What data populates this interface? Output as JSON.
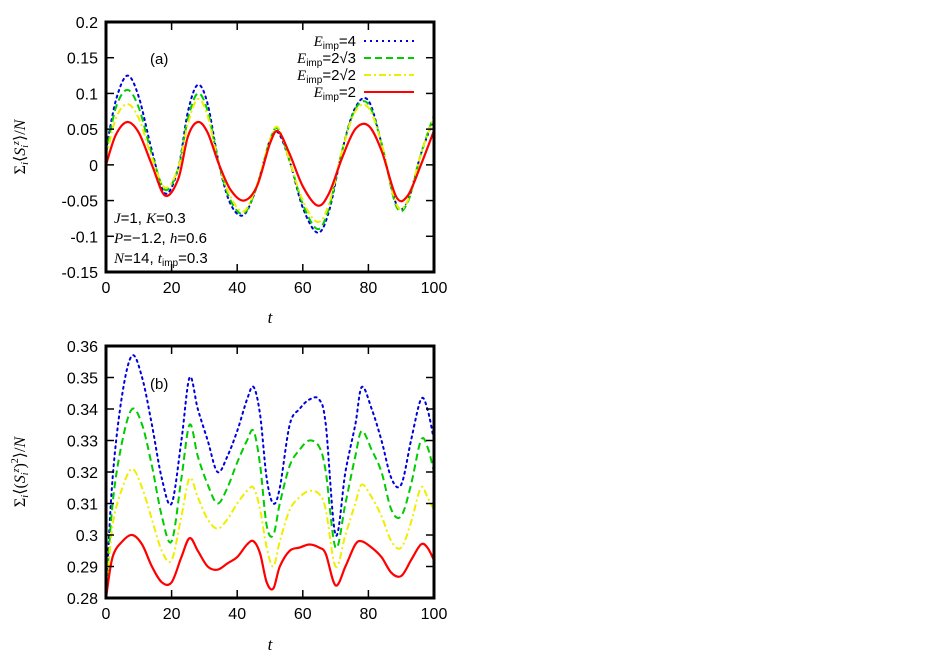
{
  "chart_data": [
    {
      "type": "line",
      "panel_label": "(a)",
      "xlabel": "t",
      "ylabel": "Σi⟨Siz⟩/N",
      "xlim": [
        0,
        100
      ],
      "ylim": [
        -0.15,
        0.2
      ],
      "xticks": [
        0,
        20,
        40,
        60,
        80,
        100
      ],
      "yticks": [
        -0.15,
        -0.1,
        -0.05,
        0,
        0.05,
        0.1,
        0.15,
        0.2
      ],
      "ytick_labels": [
        "-0.15",
        "-0.1",
        "-0.05",
        "0",
        "0.05",
        "0.1",
        "0.15",
        "0.2"
      ],
      "grid": false,
      "legend_position": "top-right",
      "annotation_lines": [
        "J=1, K=0.3",
        "P=−1.2, h=0.6",
        "N=14, timp=0.3"
      ],
      "series": [
        {
          "name": "Eimp=4",
          "color": "#0000dd",
          "dash": "dot",
          "x": [
            0,
            3,
            6.5,
            10,
            14,
            18,
            22,
            25,
            28,
            31,
            34.5,
            38,
            42,
            46,
            50,
            52.5,
            56,
            60,
            64.5,
            68,
            72,
            76,
            80,
            84,
            88.5,
            92,
            96,
            100
          ],
          "y": [
            0.02,
            0.09,
            0.125,
            0.095,
            0.02,
            -0.04,
            -0.005,
            0.075,
            0.112,
            0.085,
            0.0,
            -0.055,
            -0.07,
            -0.03,
            0.035,
            0.045,
            0.005,
            -0.06,
            -0.095,
            -0.065,
            0.02,
            0.08,
            0.09,
            0.03,
            -0.055,
            -0.05,
            0.015,
            0.065
          ]
        },
        {
          "name": "Eimp=2√3",
          "color": "#00cc00",
          "dash": "dash",
          "x": [
            0,
            3,
            6.5,
            10,
            14,
            18,
            22,
            25,
            28,
            31,
            34.5,
            38,
            42,
            46,
            50,
            52.5,
            56,
            60,
            64.5,
            68,
            72,
            76,
            80,
            84,
            88.5,
            92,
            96,
            100
          ],
          "y": [
            0.015,
            0.08,
            0.105,
            0.08,
            0.015,
            -0.035,
            -0.005,
            0.065,
            0.1,
            0.075,
            0.0,
            -0.05,
            -0.068,
            -0.03,
            0.035,
            0.05,
            0.005,
            -0.055,
            -0.09,
            -0.06,
            0.02,
            0.078,
            0.085,
            0.03,
            -0.058,
            -0.052,
            0.015,
            0.07
          ]
        },
        {
          "name": "Eimp=2√2",
          "color": "#eeee00",
          "dash": "dashdot",
          "x": [
            0,
            3,
            6.5,
            10,
            14,
            18,
            22,
            25,
            28,
            31,
            34.5,
            38,
            42,
            46,
            50,
            52.5,
            56,
            60,
            64.5,
            68,
            72,
            76,
            80,
            84,
            88.5,
            92,
            96,
            100
          ],
          "y": [
            0.01,
            0.065,
            0.085,
            0.065,
            0.01,
            -0.032,
            -0.005,
            0.058,
            0.092,
            0.068,
            0.0,
            -0.045,
            -0.065,
            -0.028,
            0.035,
            0.052,
            0.005,
            -0.05,
            -0.08,
            -0.055,
            0.02,
            0.075,
            0.08,
            0.03,
            -0.055,
            -0.05,
            0.015,
            0.068
          ]
        },
        {
          "name": "Eimp=2",
          "color": "#ff0000",
          "dash": "solid",
          "x": [
            0,
            3,
            6.5,
            10,
            14,
            18,
            22,
            25,
            28,
            31,
            34.5,
            38,
            42,
            46,
            50,
            52.5,
            56,
            60,
            64.5,
            68,
            72,
            76,
            80,
            84,
            88.5,
            92,
            96,
            100
          ],
          "y": [
            0.0,
            0.042,
            0.06,
            0.045,
            0.0,
            -0.043,
            -0.02,
            0.04,
            0.06,
            0.045,
            0.0,
            -0.035,
            -0.05,
            -0.03,
            0.03,
            0.047,
            0.015,
            -0.03,
            -0.057,
            -0.04,
            0.01,
            0.05,
            0.055,
            0.02,
            -0.045,
            -0.043,
            0.0,
            0.048
          ]
        }
      ]
    },
    {
      "type": "line",
      "panel_label": "(b)",
      "xlabel": "t",
      "ylabel": "Σi⟨(Siz)2⟩/N",
      "xlim": [
        0,
        100
      ],
      "ylim": [
        0.28,
        0.36
      ],
      "xticks": [
        0,
        20,
        40,
        60,
        80,
        100
      ],
      "yticks": [
        0.28,
        0.29,
        0.3,
        0.31,
        0.32,
        0.33,
        0.34,
        0.35,
        0.36
      ],
      "ytick_labels": [
        "0.28",
        "0.29",
        "0.3",
        "0.31",
        "0.32",
        "0.33",
        "0.34",
        "0.35",
        "0.36"
      ],
      "grid": false,
      "series": [
        {
          "name": "Eimp=4",
          "color": "#0000dd",
          "dash": "dot",
          "x": [
            0,
            2,
            5,
            8,
            11,
            14,
            17,
            20,
            23,
            25.5,
            28,
            31,
            34,
            37,
            40,
            43,
            45,
            47,
            49,
            51,
            53,
            56,
            59,
            62,
            65,
            67,
            70,
            73,
            76,
            78,
            81,
            84,
            87,
            90,
            93,
            96,
            98,
            100
          ],
          "y": [
            0.28,
            0.318,
            0.345,
            0.357,
            0.35,
            0.335,
            0.318,
            0.31,
            0.33,
            0.35,
            0.34,
            0.33,
            0.32,
            0.325,
            0.333,
            0.343,
            0.347,
            0.338,
            0.318,
            0.31,
            0.315,
            0.335,
            0.34,
            0.343,
            0.343,
            0.335,
            0.3,
            0.32,
            0.335,
            0.347,
            0.34,
            0.33,
            0.318,
            0.316,
            0.33,
            0.343,
            0.34,
            0.33
          ]
        },
        {
          "name": "Eimp=2√3",
          "color": "#00cc00",
          "dash": "dash",
          "x": [
            0,
            2,
            5,
            8,
            11,
            14,
            17,
            20,
            23,
            25.5,
            28,
            31,
            34,
            37,
            40,
            43,
            45,
            47,
            49,
            51,
            53,
            56,
            59,
            62,
            65,
            67,
            70,
            73,
            76,
            78,
            81,
            84,
            87,
            90,
            93,
            96,
            98,
            100
          ],
          "y": [
            0.28,
            0.31,
            0.33,
            0.34,
            0.335,
            0.322,
            0.306,
            0.298,
            0.318,
            0.335,
            0.325,
            0.316,
            0.31,
            0.315,
            0.323,
            0.33,
            0.333,
            0.322,
            0.303,
            0.3,
            0.31,
            0.322,
            0.327,
            0.33,
            0.328,
            0.32,
            0.296,
            0.31,
            0.325,
            0.333,
            0.327,
            0.32,
            0.308,
            0.306,
            0.316,
            0.33,
            0.328,
            0.32
          ]
        },
        {
          "name": "Eimp=2√2",
          "color": "#eeee00",
          "dash": "dashdot",
          "x": [
            0,
            2,
            5,
            8,
            11,
            14,
            17,
            20,
            23,
            25.5,
            28,
            31,
            34,
            37,
            40,
            43,
            45,
            47,
            49,
            51,
            53,
            56,
            59,
            62,
            65,
            67,
            70,
            73,
            76,
            78,
            81,
            84,
            87,
            90,
            93,
            96,
            98,
            100
          ],
          "y": [
            0.28,
            0.303,
            0.315,
            0.321,
            0.315,
            0.305,
            0.295,
            0.292,
            0.306,
            0.318,
            0.312,
            0.305,
            0.302,
            0.305,
            0.31,
            0.314,
            0.315,
            0.308,
            0.296,
            0.29,
            0.298,
            0.308,
            0.312,
            0.314,
            0.313,
            0.308,
            0.29,
            0.3,
            0.31,
            0.316,
            0.312,
            0.306,
            0.298,
            0.296,
            0.304,
            0.315,
            0.312,
            0.308
          ]
        },
        {
          "name": "Eimp=2",
          "color": "#ff0000",
          "dash": "solid",
          "x": [
            0,
            2,
            5,
            8,
            11,
            14,
            17,
            20,
            23,
            25.5,
            28,
            31,
            34,
            37,
            40,
            43,
            45,
            47,
            49,
            51,
            53,
            56,
            59,
            62,
            65,
            67,
            70,
            73,
            76,
            78,
            81,
            84,
            87,
            90,
            93,
            96,
            98,
            100
          ],
          "y": [
            0.28,
            0.293,
            0.298,
            0.3,
            0.297,
            0.29,
            0.285,
            0.285,
            0.293,
            0.299,
            0.295,
            0.29,
            0.289,
            0.291,
            0.293,
            0.297,
            0.298,
            0.294,
            0.285,
            0.283,
            0.29,
            0.295,
            0.296,
            0.297,
            0.296,
            0.294,
            0.284,
            0.29,
            0.297,
            0.298,
            0.296,
            0.293,
            0.288,
            0.287,
            0.292,
            0.297,
            0.296,
            0.292
          ]
        }
      ]
    }
  ]
}
